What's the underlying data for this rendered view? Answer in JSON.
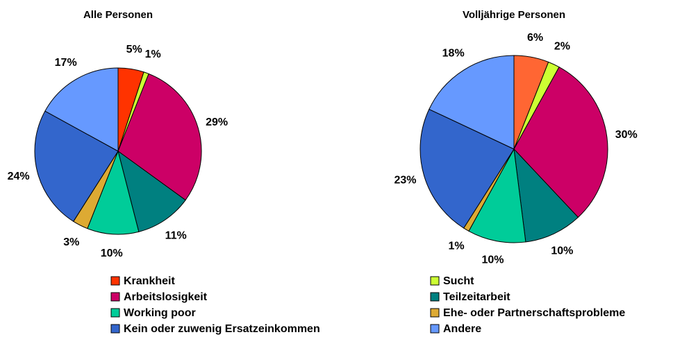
{
  "chart_data": [
    {
      "type": "pie",
      "title": "Alle Personen",
      "categories": [
        "Krankheit",
        "Sucht",
        "Arbeitslosigkeit",
        "Teilzeitarbeit",
        "Working poor",
        "Ehe- oder Partnerschaftsprobleme",
        "Kein oder zuwenig Ersatzeinkommen",
        "Andere"
      ],
      "values": [
        5,
        1,
        29,
        11,
        10,
        3,
        24,
        17
      ],
      "value_labels": [
        "5%",
        "1%",
        "29%",
        "11%",
        "10%",
        "3%",
        "24%",
        "17%"
      ],
      "colors": [
        "#ff3300",
        "#ccff33",
        "#cc0066",
        "#008080",
        "#00cc99",
        "#ddaa33",
        "#3366cc",
        "#6699ff"
      ]
    },
    {
      "type": "pie",
      "title": "Volljährige Personen",
      "categories": [
        "Krankheit",
        "Sucht",
        "Arbeitslosigkeit",
        "Teilzeitarbeit",
        "Working poor",
        "Ehe- oder Partnerschaftsprobleme",
        "Kein oder zuwenig Ersatzeinkommen",
        "Andere"
      ],
      "values": [
        6,
        2,
        30,
        10,
        10,
        1,
        23,
        18
      ],
      "value_labels": [
        "6%",
        "2%",
        "30%",
        "10%",
        "10%",
        "1%",
        "23%",
        "18%"
      ],
      "colors": [
        "#ff6633",
        "#ccff33",
        "#cc0066",
        "#008080",
        "#00cc99",
        "#ddaa33",
        "#3366cc",
        "#6699ff"
      ]
    }
  ]
}
